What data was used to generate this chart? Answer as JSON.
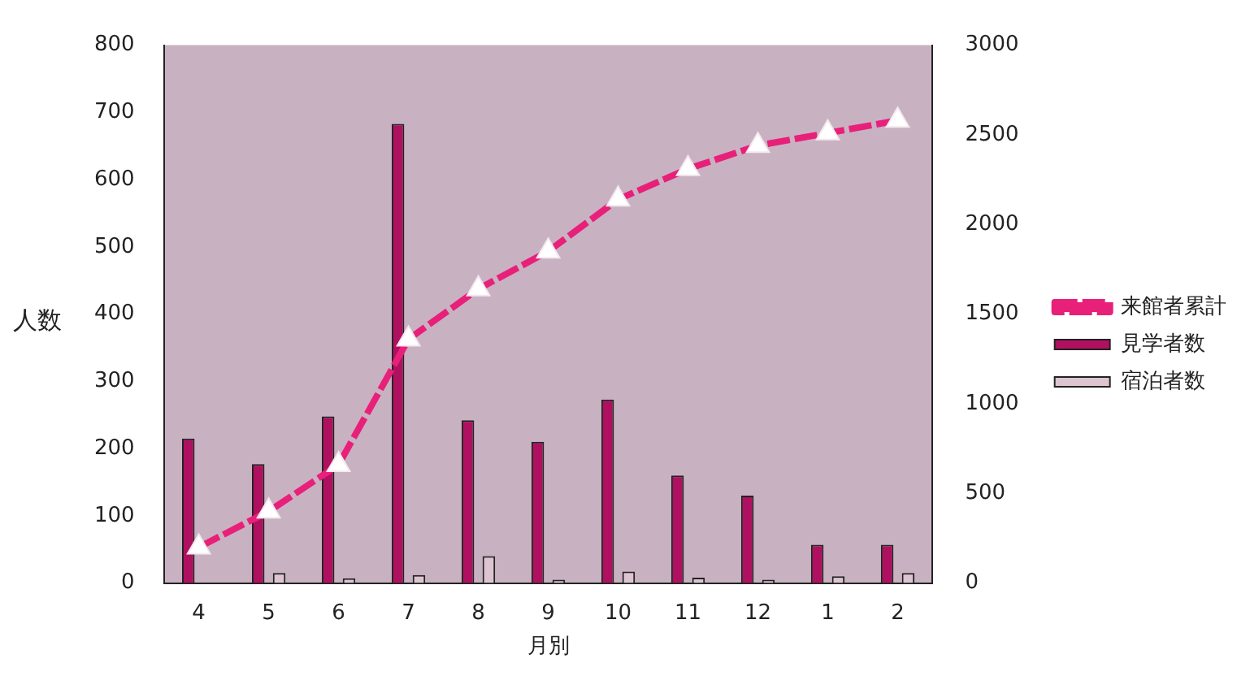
{
  "chart_data": {
    "type": "bar",
    "xlabel": "月別",
    "ylabel": "人数",
    "categories": [
      "4",
      "5",
      "6",
      "7",
      "8",
      "9",
      "10",
      "11",
      "12",
      "1",
      "2"
    ],
    "series": [
      {
        "name": "見学者数",
        "color": "#b01060",
        "values": [
          215,
          177,
          248,
          683,
          242,
          210,
          273,
          160,
          130,
          57,
          57
        ]
      },
      {
        "name": "宿泊者数",
        "color": "#dcc4d0",
        "values": [
          0,
          15,
          7,
          12,
          40,
          5,
          17,
          8,
          5,
          10,
          15
        ]
      },
      {
        "name": "来館者累計",
        "type": "line",
        "axis": "y2",
        "color": "#e8207a",
        "line_style": "dashed",
        "marker": "triangle",
        "values": [
          200,
          400,
          660,
          1360,
          1640,
          1850,
          2140,
          2310,
          2440,
          2510,
          2580
        ]
      }
    ],
    "ylim": [
      0,
      800
    ],
    "yticks": [
      0,
      100,
      200,
      300,
      400,
      500,
      600,
      700,
      800
    ],
    "y2lim": [
      0,
      3000
    ],
    "y2ticks": [
      0,
      500,
      1000,
      1500,
      2000,
      2500,
      3000
    ],
    "grid": false,
    "legend": "right"
  }
}
